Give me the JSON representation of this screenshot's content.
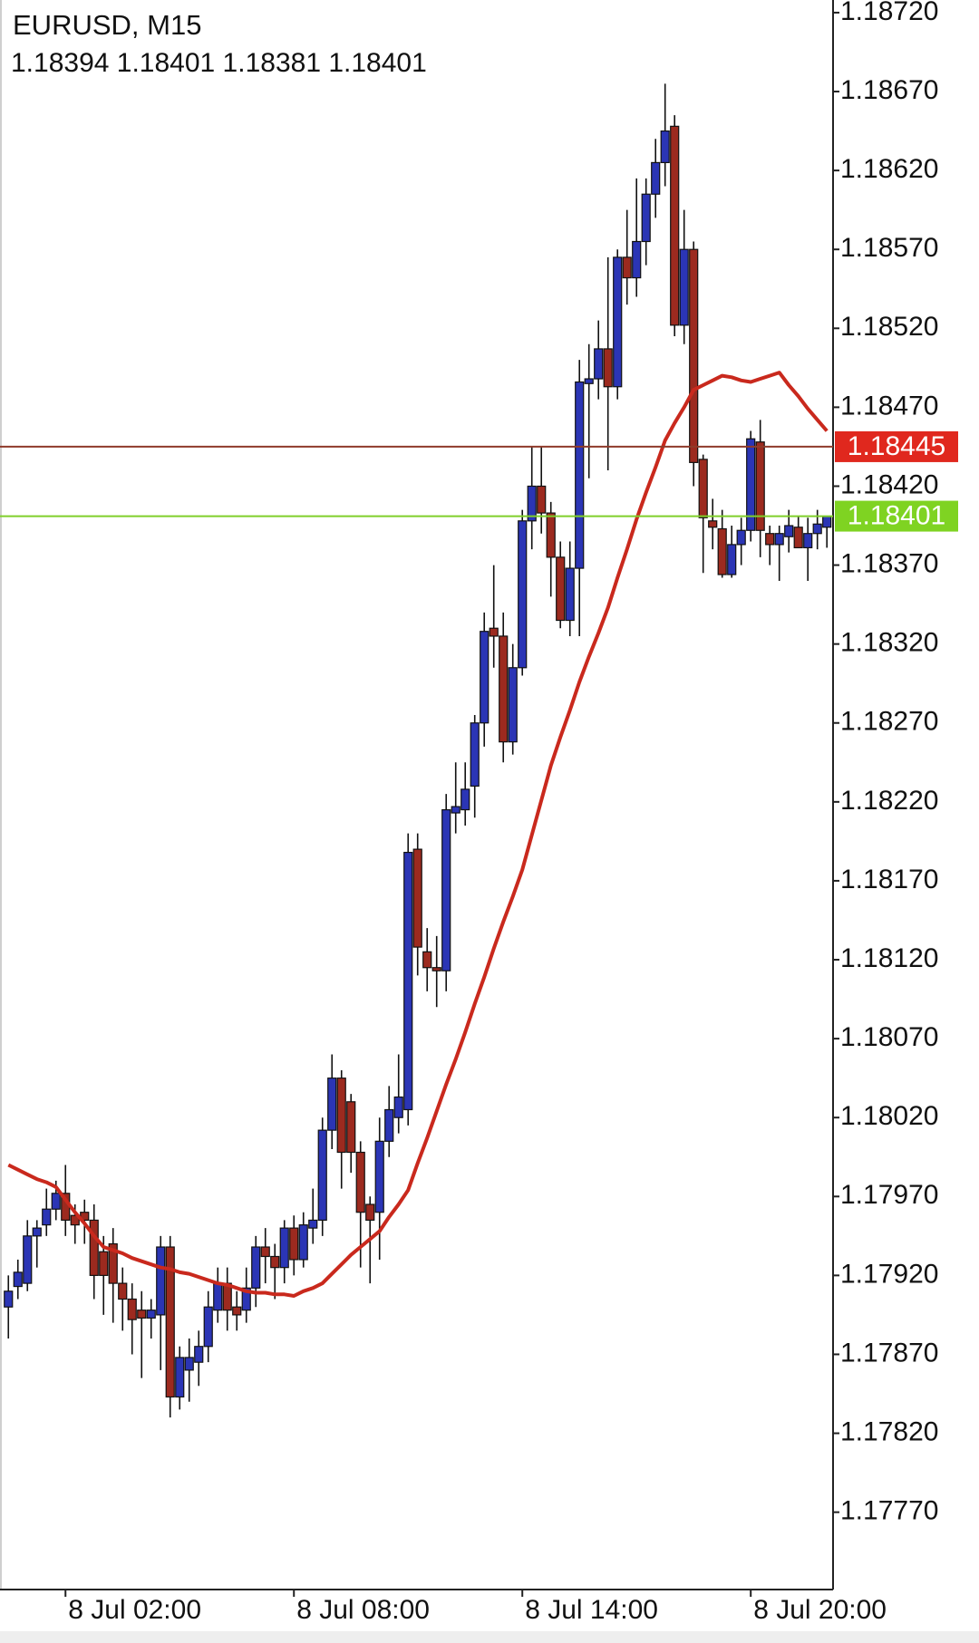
{
  "chart_data": {
    "type": "candlestick",
    "title": "EURUSD, M15",
    "subtitle": "1.18394 1.18401 1.18381 1.18401",
    "categories": [
      null,
      null,
      null,
      null,
      null,
      null,
      "8 Jul 02:00",
      null,
      null,
      null,
      null,
      null,
      null,
      null,
      null,
      null,
      null,
      null,
      null,
      null,
      null,
      null,
      null,
      null,
      null,
      null,
      null,
      null,
      null,
      null,
      "8 Jul 08:00",
      null,
      null,
      null,
      null,
      null,
      null,
      null,
      null,
      null,
      null,
      null,
      null,
      null,
      null,
      null,
      null,
      null,
      null,
      null,
      null,
      null,
      null,
      null,
      "8 Jul 14:00",
      null,
      null,
      null,
      null,
      null,
      null,
      null,
      null,
      null,
      null,
      null,
      null,
      null,
      null,
      null,
      null,
      null,
      null,
      null,
      null,
      null,
      null,
      null,
      "8 Jul 20:00",
      null,
      null,
      null,
      null,
      null,
      null,
      null,
      null
    ],
    "open": [
      1.179,
      1.17913,
      1.17915,
      1.17945,
      1.17952,
      1.17962,
      1.17972,
      1.17958,
      1.1796,
      1.17955,
      1.17935,
      1.1794,
      1.17915,
      1.17905,
      1.17898,
      1.17893,
      1.17895,
      1.17938,
      1.17843,
      1.1786,
      1.17865,
      1.17875,
      1.17898,
      1.17915,
      1.179,
      1.17898,
      1.17912,
      1.17938,
      1.17932,
      1.17925,
      1.1795,
      1.1793,
      1.1795,
      1.17955,
      1.18012,
      1.18045,
      1.1803,
      1.17998,
      1.17965,
      1.1796,
      1.18005,
      1.1802,
      1.18025,
      1.1819,
      1.18125,
      1.18115,
      1.18113,
      1.18213,
      1.18215,
      1.1823,
      1.1827,
      1.1833,
      1.18325,
      1.18258,
      1.18305,
      1.18398,
      1.1842,
      1.18403,
      1.18375,
      1.18335,
      1.18368,
      1.18485,
      1.18488,
      1.18507,
      1.18483,
      1.18565,
      1.18552,
      1.18575,
      1.18605,
      1.18625,
      1.18648,
      1.18522,
      1.1857,
      1.18437,
      1.18398,
      1.18393,
      1.18364,
      1.18383,
      1.18392,
      1.18448,
      1.1839,
      1.18383,
      1.18388,
      1.18394,
      1.18381,
      1.1839,
      1.18394
    ],
    "high": [
      1.1792,
      1.1793,
      1.17955,
      1.17955,
      1.17975,
      1.1798,
      1.1799,
      1.17965,
      1.17968,
      1.17965,
      1.17945,
      1.1795,
      1.17925,
      1.17915,
      1.1791,
      1.17905,
      1.17945,
      1.17945,
      1.17875,
      1.1788,
      1.17885,
      1.1791,
      1.17925,
      1.17925,
      1.1791,
      1.17925,
      1.17945,
      1.1795,
      1.1794,
      1.17955,
      1.17958,
      1.1796,
      1.17975,
      1.1802,
      1.1806,
      1.1805,
      1.18035,
      1.18005,
      1.1797,
      1.1802,
      1.1804,
      1.1806,
      1.182,
      1.182,
      1.1814,
      1.18135,
      1.18225,
      1.18245,
      1.18245,
      1.18275,
      1.1834,
      1.1837,
      1.1834,
      1.1832,
      1.18405,
      1.18445,
      1.18445,
      1.1841,
      1.18385,
      1.18385,
      1.185,
      1.1851,
      1.18525,
      1.18565,
      1.1857,
      1.18595,
      1.18615,
      1.18615,
      1.1864,
      1.18675,
      1.18655,
      1.18595,
      1.18575,
      1.1844,
      1.18412,
      1.18405,
      1.18395,
      1.184,
      1.18455,
      1.18462,
      1.18395,
      1.18395,
      1.18405,
      1.18401,
      1.184,
      1.18405,
      1.18401
    ],
    "low": [
      1.1788,
      1.17905,
      1.1791,
      1.17925,
      1.17945,
      1.17955,
      1.17945,
      1.1794,
      1.1794,
      1.17905,
      1.17895,
      1.1789,
      1.17885,
      1.1787,
      1.17855,
      1.1788,
      1.1786,
      1.1783,
      1.17835,
      1.1784,
      1.1785,
      1.17865,
      1.1789,
      1.17885,
      1.17885,
      1.1789,
      1.179,
      1.17915,
      1.17905,
      1.17915,
      1.1792,
      1.17925,
      1.1794,
      1.17945,
      1.18,
      1.17975,
      1.17985,
      1.17925,
      1.17915,
      1.1793,
      1.17995,
      1.1801,
      1.18015,
      1.1811,
      1.181,
      1.1809,
      1.181,
      1.182,
      1.18205,
      1.1821,
      1.18255,
      1.18305,
      1.18245,
      1.1825,
      1.183,
      1.1838,
      1.1839,
      1.1835,
      1.1833,
      1.18325,
      1.18325,
      1.18425,
      1.18475,
      1.1843,
      1.18475,
      1.18535,
      1.1854,
      1.1856,
      1.1859,
      1.1861,
      1.18515,
      1.1851,
      1.1842,
      1.18365,
      1.1838,
      1.18362,
      1.18362,
      1.1837,
      1.18385,
      1.18375,
      1.1837,
      1.1836,
      1.18378,
      1.18381,
      1.1836,
      1.1838,
      1.18381
    ],
    "close": [
      1.1791,
      1.17922,
      1.17945,
      1.1795,
      1.17962,
      1.17972,
      1.17955,
      1.17952,
      1.17955,
      1.1792,
      1.1792,
      1.17915,
      1.17905,
      1.17892,
      1.17893,
      1.17898,
      1.17938,
      1.17843,
      1.17868,
      1.17868,
      1.17875,
      1.179,
      1.17915,
      1.17898,
      1.17895,
      1.17912,
      1.17938,
      1.17932,
      1.17925,
      1.1795,
      1.1793,
      1.17952,
      1.17955,
      1.18012,
      1.18045,
      1.17998,
      1.17998,
      1.1796,
      1.17955,
      1.18005,
      1.18025,
      1.18033,
      1.18188,
      1.18128,
      1.18115,
      1.18113,
      1.18215,
      1.18217,
      1.18228,
      1.1827,
      1.18328,
      1.18325,
      1.18258,
      1.18305,
      1.18398,
      1.1842,
      1.18403,
      1.18375,
      1.18335,
      1.18368,
      1.18486,
      1.18488,
      1.18507,
      1.18483,
      1.18565,
      1.18552,
      1.18575,
      1.18605,
      1.18625,
      1.18645,
      1.18522,
      1.1857,
      1.18435,
      1.184,
      1.18394,
      1.18364,
      1.18383,
      1.18392,
      1.1845,
      1.18392,
      1.18383,
      1.1839,
      1.18395,
      1.18381,
      1.1839,
      1.18396,
      1.18401
    ],
    "up_color": "#2b35b5",
    "down_color": "#9c2a1f",
    "moving_average": {
      "color": "#c9291d",
      "values": [
        1.1799,
        1.17987,
        1.17984,
        1.17981,
        1.17979,
        1.17976,
        1.17968,
        1.1796,
        1.17953,
        1.17945,
        1.17938,
        1.17936,
        1.17934,
        1.17931,
        1.17929,
        1.17927,
        1.17925,
        1.17924,
        1.17922,
        1.17921,
        1.17919,
        1.17917,
        1.17915,
        1.17914,
        1.17912,
        1.1791,
        1.17909,
        1.17909,
        1.17908,
        1.17908,
        1.17907,
        1.1791,
        1.17912,
        1.17915,
        1.17921,
        1.17927,
        1.17933,
        1.17938,
        1.17943,
        1.17948,
        1.17957,
        1.17965,
        1.17974,
        1.17991,
        1.18007,
        1.18024,
        1.18041,
        1.18057,
        1.18074,
        1.18092,
        1.18109,
        1.18127,
        1.18144,
        1.1816,
        1.18177,
        1.18199,
        1.18221,
        1.18243,
        1.18261,
        1.18278,
        1.18296,
        1.18312,
        1.18327,
        1.18343,
        1.18362,
        1.1838,
        1.18399,
        1.18416,
        1.18432,
        1.18449,
        1.1846,
        1.1847,
        1.18481,
        1.18484,
        1.18487,
        1.1849,
        1.18489,
        1.18487,
        1.18486,
        1.18488,
        1.1849,
        1.18492,
        1.18484,
        1.18477,
        1.18469,
        1.18462,
        1.18455
      ]
    },
    "price_lines": [
      {
        "value": 1.18445,
        "line_color": "#8e3a2a",
        "box_color": "#e0281e"
      },
      {
        "value": 1.18401,
        "line_color": "#7fcf2a",
        "box_color": "#7fd322"
      }
    ],
    "ylim": [
      1.17721,
      1.18728
    ],
    "yticks": [
      {
        "value": 1.1872,
        "label": "1.18720"
      },
      {
        "value": 1.1867,
        "label": "1.18670"
      },
      {
        "value": 1.1862,
        "label": "1.18620"
      },
      {
        "value": 1.1857,
        "label": "1.18570"
      },
      {
        "value": 1.1852,
        "label": "1.18520"
      },
      {
        "value": 1.1847,
        "label": "1.18470"
      },
      {
        "value": 1.1842,
        "label": "1.18420"
      },
      {
        "value": 1.1837,
        "label": "1.18370"
      },
      {
        "value": 1.1832,
        "label": "1.18320"
      },
      {
        "value": 1.1827,
        "label": "1.18270"
      },
      {
        "value": 1.1822,
        "label": "1.18220"
      },
      {
        "value": 1.1817,
        "label": "1.18170"
      },
      {
        "value": 1.1812,
        "label": "1.18120"
      },
      {
        "value": 1.1807,
        "label": "1.18070"
      },
      {
        "value": 1.1802,
        "label": "1.18020"
      },
      {
        "value": 1.1797,
        "label": "1.17970"
      },
      {
        "value": 1.1792,
        "label": "1.17920"
      },
      {
        "value": 1.1787,
        "label": "1.17870"
      },
      {
        "value": 1.1782,
        "label": "1.17820"
      },
      {
        "value": 1.1777,
        "label": "1.17770"
      }
    ]
  }
}
